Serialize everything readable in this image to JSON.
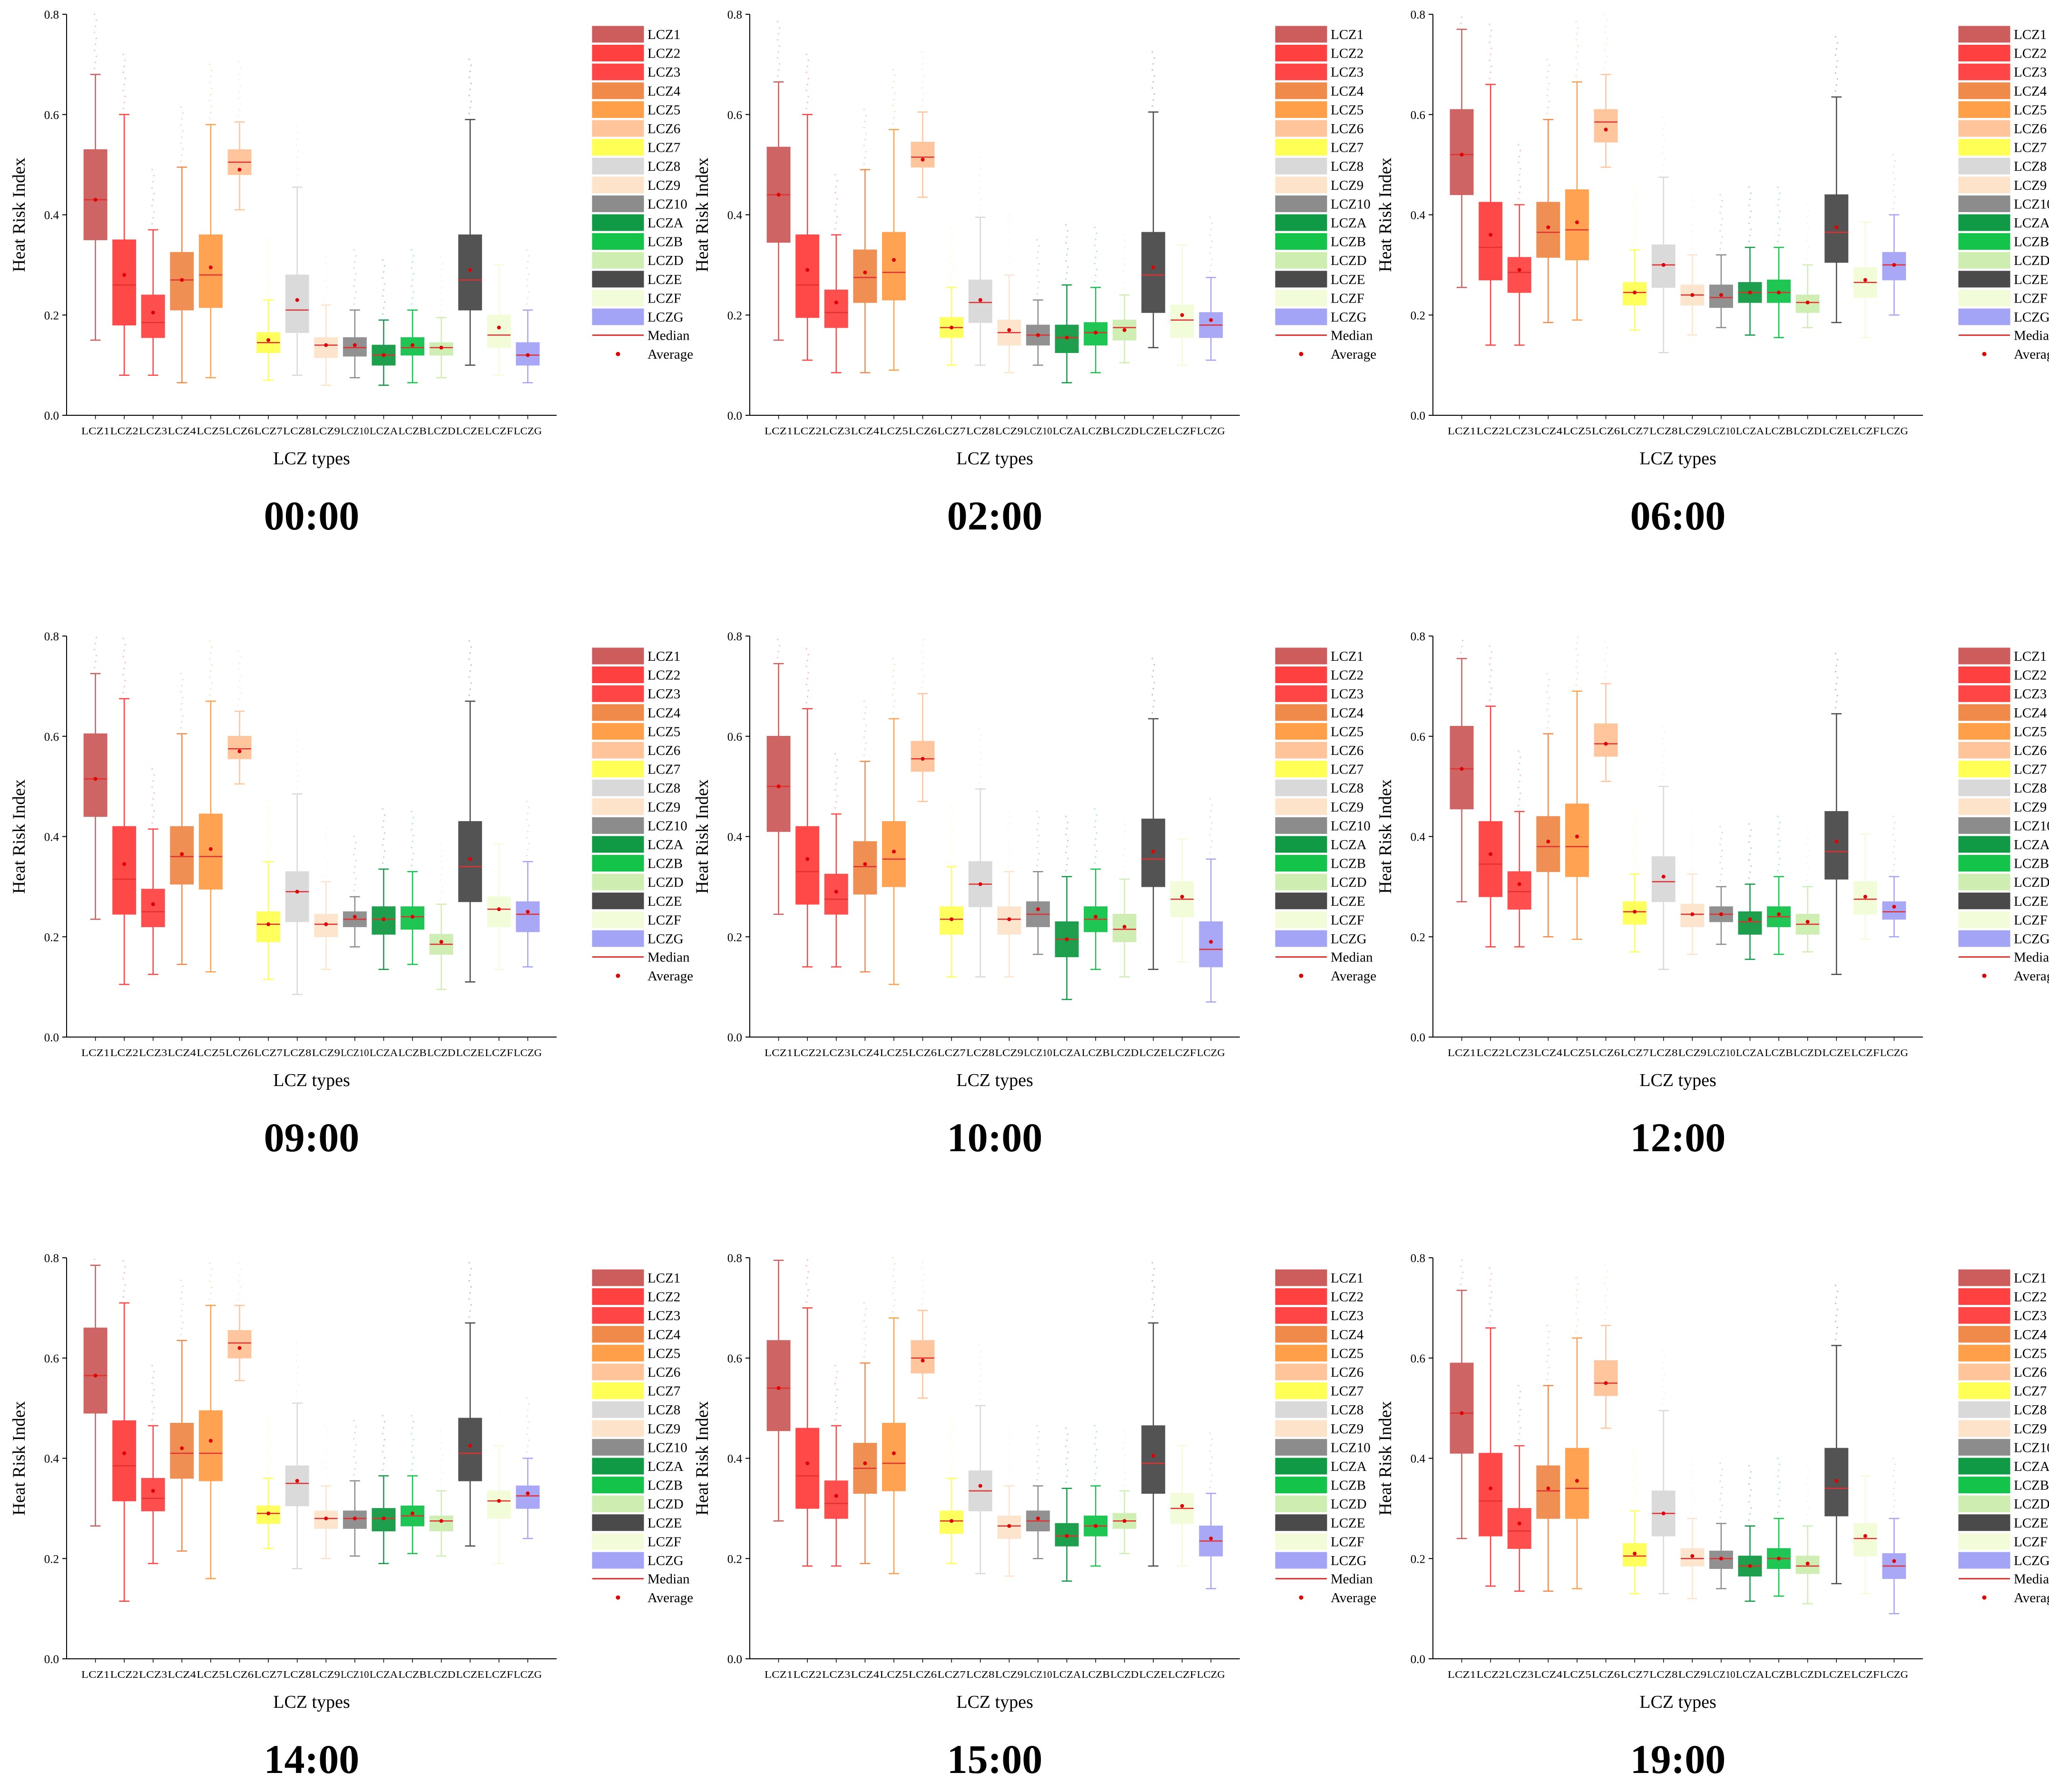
{
  "figure": {
    "ylabel": "Heat Risk Index",
    "xlabel": "LCZ types",
    "ylim": [
      0,
      0.8
    ],
    "yticks": [
      "0.0",
      "0.2",
      "0.4",
      "0.6",
      "0.8"
    ],
    "categories": [
      "LCZ1",
      "LCZ2",
      "LCZ3",
      "LCZ4",
      "LCZ5",
      "LCZ6",
      "LCZ7",
      "LCZ8",
      "LCZ9",
      "LCZ10",
      "LCZA",
      "LCZB",
      "LCZD",
      "LCZE",
      "LCZF",
      "LCZG"
    ],
    "colors": [
      "#cd5c5c",
      "#ff4040",
      "#ff4545",
      "#f08a4b",
      "#ff9f4a",
      "#ffc499",
      "#ffff55",
      "#d9d9d9",
      "#fde3ca",
      "#8c8c8c",
      "#119a45",
      "#14c44a",
      "#cdeeb0",
      "#4a4a4a",
      "#f3fcd8",
      "#a4a4f7"
    ],
    "legend_items": [
      "LCZ1",
      "LCZ2",
      "LCZ3",
      "LCZ4",
      "LCZ5",
      "LCZ6",
      "LCZ7",
      "LCZ8",
      "LCZ9",
      "LCZ10",
      "LCZA",
      "LCZB",
      "LCZD",
      "LCZE",
      "LCZF",
      "LCZG"
    ],
    "legend_median": "Median",
    "legend_average": "Average",
    "median_color": "#e03030",
    "average_color": "#e00000"
  },
  "chart_data": [
    {
      "type": "box",
      "title": "00:00",
      "stats": [
        [
          0.15,
          0.35,
          0.43,
          0.53,
          0.68,
          0.43
        ],
        [
          0.08,
          0.18,
          0.26,
          0.35,
          0.6,
          0.28
        ],
        [
          0.08,
          0.155,
          0.185,
          0.24,
          0.37,
          0.205
        ],
        [
          0.065,
          0.21,
          0.27,
          0.325,
          0.495,
          0.27
        ],
        [
          0.075,
          0.215,
          0.28,
          0.36,
          0.58,
          0.295
        ],
        [
          0.41,
          0.48,
          0.505,
          0.53,
          0.585,
          0.49
        ],
        [
          0.07,
          0.125,
          0.145,
          0.165,
          0.23,
          0.15
        ],
        [
          0.08,
          0.165,
          0.21,
          0.28,
          0.455,
          0.23
        ],
        [
          0.06,
          0.115,
          0.14,
          0.155,
          0.22,
          0.14
        ],
        [
          0.075,
          0.118,
          0.135,
          0.155,
          0.21,
          0.14
        ],
        [
          0.06,
          0.1,
          0.12,
          0.14,
          0.19,
          0.12
        ],
        [
          0.065,
          0.12,
          0.135,
          0.155,
          0.21,
          0.14
        ],
        [
          0.075,
          0.12,
          0.135,
          0.145,
          0.195,
          0.135
        ],
        [
          0.1,
          0.21,
          0.27,
          0.36,
          0.59,
          0.29
        ],
        [
          0.08,
          0.135,
          0.16,
          0.2,
          0.3,
          0.175
        ],
        [
          0.065,
          0.1,
          0.12,
          0.145,
          0.21,
          0.12
        ]
      ]
    },
    {
      "type": "box",
      "title": "02:00",
      "stats": [
        [
          0.15,
          0.345,
          0.44,
          0.535,
          0.665,
          0.44
        ],
        [
          0.11,
          0.195,
          0.26,
          0.36,
          0.6,
          0.29
        ],
        [
          0.085,
          0.175,
          0.205,
          0.25,
          0.36,
          0.225
        ],
        [
          0.085,
          0.225,
          0.275,
          0.33,
          0.49,
          0.285
        ],
        [
          0.09,
          0.23,
          0.285,
          0.365,
          0.57,
          0.31
        ],
        [
          0.435,
          0.495,
          0.515,
          0.545,
          0.605,
          0.51
        ],
        [
          0.1,
          0.155,
          0.175,
          0.195,
          0.255,
          0.175
        ],
        [
          0.1,
          0.185,
          0.225,
          0.27,
          0.395,
          0.23
        ],
        [
          0.085,
          0.14,
          0.165,
          0.19,
          0.28,
          0.17
        ],
        [
          0.1,
          0.14,
          0.16,
          0.18,
          0.23,
          0.16
        ],
        [
          0.065,
          0.125,
          0.155,
          0.18,
          0.26,
          0.155
        ],
        [
          0.085,
          0.14,
          0.165,
          0.185,
          0.255,
          0.165
        ],
        [
          0.105,
          0.15,
          0.175,
          0.19,
          0.24,
          0.17
        ],
        [
          0.135,
          0.205,
          0.28,
          0.365,
          0.605,
          0.295
        ],
        [
          0.1,
          0.155,
          0.19,
          0.22,
          0.34,
          0.2
        ],
        [
          0.11,
          0.155,
          0.18,
          0.205,
          0.275,
          0.19
        ]
      ]
    },
    {
      "type": "box",
      "title": "06:00",
      "stats": [
        [
          0.255,
          0.44,
          0.52,
          0.61,
          0.77,
          0.52
        ],
        [
          0.14,
          0.27,
          0.335,
          0.425,
          0.66,
          0.36
        ],
        [
          0.14,
          0.245,
          0.285,
          0.315,
          0.42,
          0.29
        ],
        [
          0.185,
          0.315,
          0.365,
          0.425,
          0.59,
          0.375
        ],
        [
          0.19,
          0.31,
          0.37,
          0.45,
          0.665,
          0.385
        ],
        [
          0.495,
          0.545,
          0.585,
          0.61,
          0.68,
          0.57
        ],
        [
          0.17,
          0.22,
          0.245,
          0.265,
          0.33,
          0.245
        ],
        [
          0.125,
          0.255,
          0.3,
          0.34,
          0.475,
          0.3
        ],
        [
          0.16,
          0.22,
          0.24,
          0.26,
          0.32,
          0.24
        ],
        [
          0.175,
          0.215,
          0.235,
          0.26,
          0.32,
          0.24
        ],
        [
          0.16,
          0.225,
          0.245,
          0.265,
          0.335,
          0.245
        ],
        [
          0.155,
          0.225,
          0.245,
          0.27,
          0.335,
          0.245
        ],
        [
          0.175,
          0.205,
          0.225,
          0.24,
          0.3,
          0.225
        ],
        [
          0.185,
          0.305,
          0.365,
          0.44,
          0.635,
          0.375
        ],
        [
          0.155,
          0.235,
          0.265,
          0.295,
          0.385,
          0.27
        ],
        [
          0.2,
          0.27,
          0.3,
          0.325,
          0.4,
          0.3
        ]
      ]
    },
    {
      "type": "box",
      "title": "09:00",
      "stats": [
        [
          0.235,
          0.44,
          0.515,
          0.605,
          0.725,
          0.515
        ],
        [
          0.105,
          0.245,
          0.315,
          0.42,
          0.675,
          0.345
        ],
        [
          0.125,
          0.22,
          0.25,
          0.295,
          0.415,
          0.265
        ],
        [
          0.145,
          0.305,
          0.36,
          0.42,
          0.605,
          0.365
        ],
        [
          0.13,
          0.295,
          0.36,
          0.445,
          0.67,
          0.375
        ],
        [
          0.505,
          0.555,
          0.575,
          0.6,
          0.65,
          0.57
        ],
        [
          0.115,
          0.19,
          0.225,
          0.25,
          0.35,
          0.225
        ],
        [
          0.085,
          0.23,
          0.29,
          0.33,
          0.485,
          0.29
        ],
        [
          0.135,
          0.2,
          0.225,
          0.245,
          0.31,
          0.225
        ],
        [
          0.18,
          0.22,
          0.235,
          0.25,
          0.28,
          0.24
        ],
        [
          0.135,
          0.205,
          0.235,
          0.26,
          0.335,
          0.235
        ],
        [
          0.145,
          0.215,
          0.24,
          0.26,
          0.33,
          0.24
        ],
        [
          0.095,
          0.165,
          0.185,
          0.205,
          0.265,
          0.19
        ],
        [
          0.11,
          0.27,
          0.34,
          0.43,
          0.67,
          0.355
        ],
        [
          0.135,
          0.22,
          0.255,
          0.28,
          0.385,
          0.255
        ],
        [
          0.14,
          0.21,
          0.245,
          0.27,
          0.35,
          0.25
        ]
      ]
    },
    {
      "type": "box",
      "title": "10:00",
      "stats": [
        [
          0.245,
          0.41,
          0.5,
          0.6,
          0.745,
          0.5
        ],
        [
          0.14,
          0.265,
          0.33,
          0.42,
          0.655,
          0.355
        ],
        [
          0.14,
          0.245,
          0.275,
          0.325,
          0.445,
          0.29
        ],
        [
          0.13,
          0.285,
          0.34,
          0.39,
          0.55,
          0.345
        ],
        [
          0.105,
          0.3,
          0.355,
          0.43,
          0.635,
          0.37
        ],
        [
          0.47,
          0.53,
          0.555,
          0.59,
          0.685,
          0.555
        ],
        [
          0.12,
          0.205,
          0.235,
          0.26,
          0.34,
          0.235
        ],
        [
          0.12,
          0.26,
          0.305,
          0.35,
          0.495,
          0.305
        ],
        [
          0.12,
          0.205,
          0.235,
          0.26,
          0.33,
          0.235
        ],
        [
          0.165,
          0.22,
          0.245,
          0.27,
          0.33,
          0.255
        ],
        [
          0.075,
          0.16,
          0.195,
          0.23,
          0.32,
          0.195
        ],
        [
          0.135,
          0.21,
          0.235,
          0.26,
          0.335,
          0.24
        ],
        [
          0.12,
          0.19,
          0.215,
          0.245,
          0.315,
          0.22
        ],
        [
          0.135,
          0.3,
          0.355,
          0.435,
          0.635,
          0.37
        ],
        [
          0.15,
          0.24,
          0.275,
          0.31,
          0.395,
          0.28
        ],
        [
          0.07,
          0.14,
          0.175,
          0.23,
          0.355,
          0.19
        ]
      ]
    },
    {
      "type": "box",
      "title": "12:00",
      "stats": [
        [
          0.27,
          0.455,
          0.535,
          0.62,
          0.755,
          0.535
        ],
        [
          0.18,
          0.28,
          0.345,
          0.43,
          0.66,
          0.365
        ],
        [
          0.18,
          0.255,
          0.29,
          0.33,
          0.45,
          0.305
        ],
        [
          0.2,
          0.33,
          0.38,
          0.44,
          0.605,
          0.39
        ],
        [
          0.195,
          0.32,
          0.38,
          0.465,
          0.69,
          0.4
        ],
        [
          0.51,
          0.56,
          0.585,
          0.625,
          0.705,
          0.585
        ],
        [
          0.17,
          0.225,
          0.25,
          0.27,
          0.325,
          0.25
        ],
        [
          0.135,
          0.27,
          0.31,
          0.36,
          0.5,
          0.32
        ],
        [
          0.165,
          0.22,
          0.245,
          0.265,
          0.325,
          0.245
        ],
        [
          0.185,
          0.23,
          0.245,
          0.26,
          0.3,
          0.245
        ],
        [
          0.155,
          0.205,
          0.23,
          0.25,
          0.305,
          0.235
        ],
        [
          0.165,
          0.22,
          0.24,
          0.26,
          0.32,
          0.245
        ],
        [
          0.17,
          0.205,
          0.225,
          0.245,
          0.3,
          0.23
        ],
        [
          0.125,
          0.315,
          0.37,
          0.45,
          0.645,
          0.39
        ],
        [
          0.195,
          0.245,
          0.275,
          0.31,
          0.405,
          0.28
        ],
        [
          0.2,
          0.235,
          0.25,
          0.27,
          0.32,
          0.26
        ]
      ]
    },
    {
      "type": "box",
      "title": "14:00",
      "stats": [
        [
          0.265,
          0.49,
          0.565,
          0.66,
          0.785,
          0.565
        ],
        [
          0.115,
          0.315,
          0.385,
          0.475,
          0.71,
          0.41
        ],
        [
          0.19,
          0.295,
          0.32,
          0.36,
          0.465,
          0.335
        ],
        [
          0.215,
          0.36,
          0.41,
          0.47,
          0.635,
          0.42
        ],
        [
          0.16,
          0.355,
          0.41,
          0.495,
          0.705,
          0.435
        ],
        [
          0.555,
          0.6,
          0.63,
          0.655,
          0.705,
          0.62
        ],
        [
          0.22,
          0.27,
          0.29,
          0.305,
          0.36,
          0.29
        ],
        [
          0.18,
          0.305,
          0.35,
          0.385,
          0.51,
          0.355
        ],
        [
          0.2,
          0.26,
          0.28,
          0.295,
          0.345,
          0.28
        ],
        [
          0.205,
          0.26,
          0.28,
          0.295,
          0.355,
          0.28
        ],
        [
          0.19,
          0.255,
          0.28,
          0.3,
          0.365,
          0.28
        ],
        [
          0.21,
          0.265,
          0.285,
          0.305,
          0.365,
          0.29
        ],
        [
          0.205,
          0.255,
          0.275,
          0.285,
          0.335,
          0.275
        ],
        [
          0.225,
          0.355,
          0.41,
          0.48,
          0.67,
          0.425
        ],
        [
          0.19,
          0.28,
          0.315,
          0.335,
          0.425,
          0.315
        ],
        [
          0.24,
          0.3,
          0.325,
          0.345,
          0.4,
          0.33
        ]
      ]
    },
    {
      "type": "box",
      "title": "15:00",
      "stats": [
        [
          0.275,
          0.455,
          0.54,
          0.635,
          0.795,
          0.54
        ],
        [
          0.185,
          0.3,
          0.365,
          0.46,
          0.7,
          0.39
        ],
        [
          0.185,
          0.28,
          0.31,
          0.355,
          0.465,
          0.325
        ],
        [
          0.19,
          0.33,
          0.38,
          0.43,
          0.59,
          0.39
        ],
        [
          0.17,
          0.335,
          0.39,
          0.47,
          0.68,
          0.41
        ],
        [
          0.52,
          0.57,
          0.6,
          0.635,
          0.695,
          0.595
        ],
        [
          0.19,
          0.25,
          0.275,
          0.295,
          0.36,
          0.275
        ],
        [
          0.17,
          0.295,
          0.335,
          0.375,
          0.505,
          0.345
        ],
        [
          0.165,
          0.24,
          0.265,
          0.285,
          0.345,
          0.265
        ],
        [
          0.2,
          0.255,
          0.275,
          0.295,
          0.345,
          0.28
        ],
        [
          0.155,
          0.225,
          0.245,
          0.27,
          0.34,
          0.245
        ],
        [
          0.185,
          0.245,
          0.265,
          0.285,
          0.345,
          0.265
        ],
        [
          0.21,
          0.26,
          0.275,
          0.29,
          0.335,
          0.275
        ],
        [
          0.185,
          0.33,
          0.39,
          0.465,
          0.67,
          0.405
        ],
        [
          0.185,
          0.27,
          0.3,
          0.33,
          0.425,
          0.305
        ],
        [
          0.14,
          0.205,
          0.235,
          0.265,
          0.33,
          0.24
        ]
      ]
    },
    {
      "type": "box",
      "title": "19:00",
      "stats": [
        [
          0.24,
          0.41,
          0.49,
          0.59,
          0.735,
          0.49
        ],
        [
          0.145,
          0.245,
          0.315,
          0.41,
          0.66,
          0.34
        ],
        [
          0.135,
          0.22,
          0.255,
          0.3,
          0.425,
          0.27
        ],
        [
          0.135,
          0.28,
          0.335,
          0.385,
          0.545,
          0.34
        ],
        [
          0.14,
          0.28,
          0.34,
          0.42,
          0.64,
          0.355
        ],
        [
          0.46,
          0.525,
          0.55,
          0.595,
          0.665,
          0.55
        ],
        [
          0.13,
          0.185,
          0.205,
          0.23,
          0.295,
          0.21
        ],
        [
          0.13,
          0.245,
          0.29,
          0.335,
          0.495,
          0.29
        ],
        [
          0.12,
          0.185,
          0.2,
          0.22,
          0.28,
          0.205
        ],
        [
          0.14,
          0.18,
          0.2,
          0.215,
          0.27,
          0.2
        ],
        [
          0.115,
          0.165,
          0.185,
          0.205,
          0.265,
          0.185
        ],
        [
          0.125,
          0.18,
          0.2,
          0.22,
          0.28,
          0.2
        ],
        [
          0.11,
          0.17,
          0.185,
          0.205,
          0.265,
          0.19
        ],
        [
          0.15,
          0.285,
          0.34,
          0.42,
          0.625,
          0.355
        ],
        [
          0.13,
          0.205,
          0.24,
          0.27,
          0.365,
          0.245
        ],
        [
          0.09,
          0.16,
          0.185,
          0.21,
          0.28,
          0.195
        ]
      ]
    }
  ]
}
